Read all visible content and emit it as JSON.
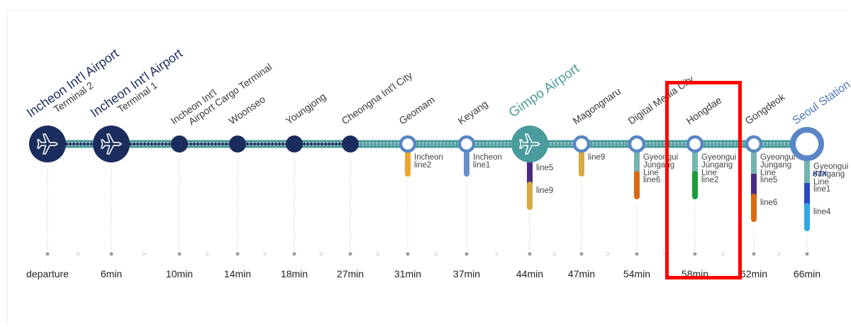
{
  "colors": {
    "navy": "#1b2d5c",
    "teal": "#4a9b9c",
    "blue_ring": "#5a86c5",
    "highlight": "#ff0000"
  },
  "stations": [
    {
      "id": "t2",
      "name": "Incheon Int'l Airport",
      "subname": "Terminal 2",
      "time": "departure",
      "type": "airport-major",
      "lines": []
    },
    {
      "id": "t1",
      "name": "Incheon Int'l Airport",
      "subname": "Terminal 1",
      "time": "6min",
      "type": "airport-major",
      "lines": []
    },
    {
      "id": "cargo",
      "name": "Incheon Int'l",
      "subname": "Airport Cargo Terminal",
      "time": "10min",
      "type": "dark",
      "lines": []
    },
    {
      "id": "woonseo",
      "name": "Woonseo",
      "time": "14min",
      "type": "dark",
      "lines": []
    },
    {
      "id": "youngjong",
      "name": "Youngjong",
      "time": "18min",
      "type": "dark",
      "lines": []
    },
    {
      "id": "cheongna",
      "name": "Cheongna Int'l City",
      "time": "27min",
      "type": "dark",
      "lines": []
    },
    {
      "id": "geomam",
      "name": "Geomam",
      "time": "31min",
      "type": "ring",
      "lines": [
        {
          "label": "Incheon line2",
          "color": "#f0a42c"
        }
      ]
    },
    {
      "id": "keyang",
      "name": "Keyang",
      "time": "37min",
      "type": "ring",
      "lines": [
        {
          "label": "Incheon line1",
          "color": "#6a8fc9"
        }
      ]
    },
    {
      "id": "gimpo",
      "name": "Gimpo Airport",
      "time": "44min",
      "type": "airport-teal",
      "lines": [
        {
          "label": "line5",
          "color": "#4b2b7f"
        },
        {
          "label": "line9",
          "color": "#d5aa3e"
        }
      ]
    },
    {
      "id": "magongnaru",
      "name": "Magongnaru",
      "time": "47min",
      "type": "ring",
      "lines": [
        {
          "label": "line9",
          "color": "#d5aa3e"
        }
      ]
    },
    {
      "id": "dmc",
      "name": "Digital Media City",
      "time": "54min",
      "type": "ring",
      "lines": [
        {
          "label": "Gyeongui Jungang Line",
          "color": "#77b3b0"
        },
        {
          "label": "line6",
          "color": "#d96a12"
        }
      ]
    },
    {
      "id": "hongdae",
      "name": "Hongdae",
      "time": "58min",
      "type": "ring",
      "lines": [
        {
          "label": "Gyeongui Jungang Line",
          "color": "#77b3b0"
        },
        {
          "label": "line2",
          "color": "#1e9a3a"
        }
      ]
    },
    {
      "id": "gongdeok",
      "name": "Gongdeok",
      "time": "62min",
      "type": "ring",
      "lines": [
        {
          "label": "Gyeongui Jungang Line",
          "color": "#77b3b0"
        },
        {
          "label": "line5",
          "color": "#4b2b7f"
        },
        {
          "label": "line6",
          "color": "#d96a12"
        }
      ]
    },
    {
      "id": "seoul",
      "name": "Seoul Station",
      "time": "66min",
      "type": "terminal",
      "ktx": "KTX",
      "lines": [
        {
          "label": "Gyeongui Jungang Line",
          "color": "#77b3b0"
        },
        {
          "label": "line1",
          "color": "#2a46c4"
        },
        {
          "label": "line4",
          "color": "#31a8dc"
        }
      ]
    }
  ]
}
